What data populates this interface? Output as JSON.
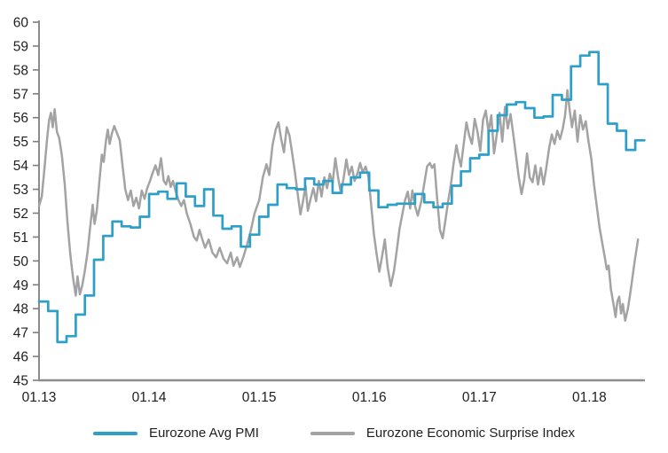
{
  "chart_data": {
    "type": "line",
    "title": "",
    "grid": "off",
    "legend_position": "bottom-center",
    "x_axis": {
      "tick_labels": [
        "01.13",
        "01.14",
        "01.15",
        "01.16",
        "01.17",
        "01.18"
      ],
      "tick_months": [
        0,
        12,
        24,
        36,
        48,
        60
      ],
      "axis_color": "#8c8c8c"
    },
    "y_axis": {
      "min": 45,
      "max": 60,
      "tick_step": 1,
      "tick_labels": [
        "45",
        "46",
        "47",
        "48",
        "49",
        "50",
        "51",
        "52",
        "53",
        "54",
        "55",
        "56",
        "57",
        "58",
        "59",
        "60"
      ],
      "axis_color": "#7f7f7f",
      "label_color": "#1f1f1f"
    },
    "series": [
      {
        "name": "Eurozone Avg PMI",
        "style": "step",
        "color": "#2D9FC9",
        "start": "01.13",
        "frequency": "monthly",
        "values": [
          48.3,
          47.9,
          46.6,
          46.85,
          47.75,
          48.55,
          50.05,
          51.05,
          51.65,
          51.45,
          51.4,
          51.85,
          52.8,
          52.9,
          52.6,
          53.25,
          52.7,
          52.3,
          53.0,
          51.9,
          51.35,
          51.45,
          50.6,
          51.1,
          51.85,
          52.35,
          53.2,
          53.05,
          53.0,
          53.45,
          53.2,
          53.35,
          52.85,
          53.2,
          53.5,
          53.7,
          52.95,
          52.25,
          52.35,
          52.4,
          52.4,
          52.8,
          52.45,
          52.25,
          52.4,
          53.15,
          53.75,
          54.3,
          54.45,
          55.45,
          56.1,
          56.55,
          56.65,
          56.4,
          56.0,
          56.05,
          56.95,
          56.75,
          58.15,
          58.6,
          58.75,
          57.4,
          55.75,
          55.45,
          54.65,
          55.05
        ]
      },
      {
        "name": "Eurozone Economic Surprise Index",
        "style": "line",
        "color": "#A3A3A3",
        "points": [
          [
            0,
            52.3
          ],
          [
            0.3,
            52.7
          ],
          [
            0.6,
            53.9
          ],
          [
            0.9,
            55.2
          ],
          [
            1.1,
            55.9
          ],
          [
            1.3,
            56.2
          ],
          [
            1.5,
            55.6
          ],
          [
            1.7,
            56.35
          ],
          [
            1.95,
            55.4
          ],
          [
            2.2,
            55.15
          ],
          [
            2.5,
            54.4
          ],
          [
            2.8,
            53.2
          ],
          [
            3.1,
            51.6
          ],
          [
            3.4,
            50.3
          ],
          [
            3.7,
            49.3
          ],
          [
            4.0,
            48.55
          ],
          [
            4.2,
            49.35
          ],
          [
            4.45,
            48.6
          ],
          [
            4.7,
            48.95
          ],
          [
            5.0,
            49.6
          ],
          [
            5.3,
            50.4
          ],
          [
            5.6,
            51.5
          ],
          [
            5.85,
            52.35
          ],
          [
            6.05,
            51.55
          ],
          [
            6.3,
            52.1
          ],
          [
            6.6,
            53.4
          ],
          [
            6.85,
            54.45
          ],
          [
            7.05,
            54.15
          ],
          [
            7.3,
            55.05
          ],
          [
            7.5,
            55.5
          ],
          [
            7.7,
            54.9
          ],
          [
            7.95,
            55.35
          ],
          [
            8.2,
            55.65
          ],
          [
            8.5,
            55.35
          ],
          [
            8.8,
            55.05
          ],
          [
            9.1,
            54.0
          ],
          [
            9.4,
            53.0
          ],
          [
            9.7,
            52.55
          ],
          [
            10.0,
            52.95
          ],
          [
            10.3,
            52.3
          ],
          [
            10.6,
            52.65
          ],
          [
            10.9,
            52.2
          ],
          [
            11.2,
            52.95
          ],
          [
            11.5,
            52.6
          ],
          [
            11.8,
            53.05
          ],
          [
            12.1,
            53.35
          ],
          [
            12.4,
            53.7
          ],
          [
            12.7,
            54.0
          ],
          [
            13.0,
            53.6
          ],
          [
            13.3,
            54.3
          ],
          [
            13.6,
            53.35
          ],
          [
            13.85,
            53.2
          ],
          [
            14.1,
            53.55
          ],
          [
            14.35,
            53.1
          ],
          [
            14.6,
            53.35
          ],
          [
            14.9,
            52.9
          ],
          [
            15.2,
            52.55
          ],
          [
            15.5,
            52.3
          ],
          [
            15.8,
            52.55
          ],
          [
            16.1,
            52.0
          ],
          [
            16.5,
            51.55
          ],
          [
            16.9,
            51.0
          ],
          [
            17.2,
            50.85
          ],
          [
            17.5,
            51.3
          ],
          [
            17.8,
            50.9
          ],
          [
            18.1,
            50.55
          ],
          [
            18.5,
            50.9
          ],
          [
            18.9,
            50.35
          ],
          [
            19.3,
            50.15
          ],
          [
            19.7,
            50.55
          ],
          [
            20.1,
            50.1
          ],
          [
            20.5,
            49.9
          ],
          [
            20.9,
            50.35
          ],
          [
            21.2,
            49.8
          ],
          [
            21.6,
            50.15
          ],
          [
            21.9,
            49.75
          ],
          [
            22.3,
            50.2
          ],
          [
            22.7,
            50.7
          ],
          [
            23.1,
            51.3
          ],
          [
            23.5,
            52.0
          ],
          [
            24.0,
            52.55
          ],
          [
            24.4,
            53.5
          ],
          [
            24.8,
            54.05
          ],
          [
            25.1,
            53.6
          ],
          [
            25.45,
            54.85
          ],
          [
            25.8,
            55.5
          ],
          [
            26.1,
            55.8
          ],
          [
            26.4,
            55.1
          ],
          [
            26.7,
            54.55
          ],
          [
            27.0,
            55.6
          ],
          [
            27.3,
            55.25
          ],
          [
            27.6,
            54.5
          ],
          [
            27.9,
            53.7
          ],
          [
            28.2,
            52.8
          ],
          [
            28.5,
            51.95
          ],
          [
            28.8,
            52.55
          ],
          [
            29.05,
            53.15
          ],
          [
            29.3,
            52.1
          ],
          [
            29.6,
            52.6
          ],
          [
            29.9,
            53.05
          ],
          [
            30.2,
            52.5
          ],
          [
            30.5,
            53.35
          ],
          [
            30.8,
            52.7
          ],
          [
            31.1,
            53.5
          ],
          [
            31.4,
            53.05
          ],
          [
            31.7,
            53.65
          ],
          [
            32.0,
            53.25
          ],
          [
            32.3,
            54.3
          ],
          [
            32.6,
            53.5
          ],
          [
            32.9,
            52.85
          ],
          [
            33.2,
            53.45
          ],
          [
            33.5,
            54.25
          ],
          [
            33.8,
            53.6
          ],
          [
            34.1,
            53.95
          ],
          [
            34.4,
            53.35
          ],
          [
            34.7,
            53.65
          ],
          [
            35.0,
            54.1
          ],
          [
            35.3,
            53.7
          ],
          [
            35.6,
            53.95
          ],
          [
            35.9,
            53.55
          ],
          [
            36.2,
            52.4
          ],
          [
            36.5,
            51.15
          ],
          [
            36.8,
            50.3
          ],
          [
            37.1,
            49.55
          ],
          [
            37.45,
            50.3
          ],
          [
            37.7,
            50.9
          ],
          [
            38.0,
            49.75
          ],
          [
            38.35,
            48.95
          ],
          [
            38.7,
            49.6
          ],
          [
            39.0,
            50.45
          ],
          [
            39.3,
            51.35
          ],
          [
            39.6,
            51.95
          ],
          [
            39.9,
            52.55
          ],
          [
            40.2,
            52.9
          ],
          [
            40.45,
            52.2
          ],
          [
            40.7,
            52.95
          ],
          [
            41.0,
            52.3
          ],
          [
            41.3,
            51.9
          ],
          [
            41.7,
            52.55
          ],
          [
            42.0,
            53.25
          ],
          [
            42.3,
            53.95
          ],
          [
            42.6,
            54.1
          ],
          [
            42.85,
            53.9
          ],
          [
            43.1,
            54.05
          ],
          [
            43.4,
            52.6
          ],
          [
            43.7,
            51.3
          ],
          [
            44.0,
            50.95
          ],
          [
            44.3,
            51.7
          ],
          [
            44.6,
            52.5
          ],
          [
            44.9,
            53.2
          ],
          [
            45.2,
            54.1
          ],
          [
            45.5,
            54.85
          ],
          [
            45.75,
            54.35
          ],
          [
            46.0,
            53.95
          ],
          [
            46.3,
            54.9
          ],
          [
            46.6,
            55.8
          ],
          [
            46.9,
            55.25
          ],
          [
            47.2,
            54.9
          ],
          [
            47.5,
            55.95
          ],
          [
            47.8,
            55.4
          ],
          [
            48.1,
            54.6
          ],
          [
            48.4,
            55.9
          ],
          [
            48.7,
            56.3
          ],
          [
            49.0,
            55.4
          ],
          [
            49.3,
            56.1
          ],
          [
            49.6,
            54.5
          ],
          [
            49.9,
            55.3
          ],
          [
            50.2,
            56.2
          ],
          [
            50.5,
            55.0
          ],
          [
            50.8,
            56.45
          ],
          [
            51.1,
            55.55
          ],
          [
            51.4,
            56.15
          ],
          [
            51.7,
            55.3
          ],
          [
            52.0,
            54.4
          ],
          [
            52.3,
            53.5
          ],
          [
            52.6,
            52.8
          ],
          [
            52.9,
            53.4
          ],
          [
            53.2,
            54.5
          ],
          [
            53.5,
            53.5
          ],
          [
            53.8,
            53.3
          ],
          [
            54.1,
            54.0
          ],
          [
            54.4,
            53.2
          ],
          [
            54.7,
            53.9
          ],
          [
            55.0,
            53.2
          ],
          [
            55.3,
            53.9
          ],
          [
            55.6,
            54.7
          ],
          [
            55.9,
            55.3
          ],
          [
            56.2,
            54.9
          ],
          [
            56.5,
            55.45
          ],
          [
            56.8,
            55.1
          ],
          [
            57.1,
            55.55
          ],
          [
            57.35,
            56.1
          ],
          [
            57.6,
            57.15
          ],
          [
            57.85,
            56.3
          ],
          [
            58.1,
            55.6
          ],
          [
            58.4,
            56.3
          ],
          [
            58.7,
            55.0
          ],
          [
            59.0,
            56.1
          ],
          [
            59.3,
            55.5
          ],
          [
            59.6,
            55.85
          ],
          [
            59.9,
            55.0
          ],
          [
            60.2,
            54.3
          ],
          [
            60.5,
            53.2
          ],
          [
            60.8,
            52.3
          ],
          [
            61.1,
            51.4
          ],
          [
            61.4,
            50.75
          ],
          [
            61.7,
            50.1
          ],
          [
            61.9,
            49.65
          ],
          [
            62.1,
            49.8
          ],
          [
            62.35,
            48.8
          ],
          [
            62.6,
            48.25
          ],
          [
            62.85,
            47.65
          ],
          [
            63.05,
            48.3
          ],
          [
            63.25,
            48.5
          ],
          [
            63.45,
            47.8
          ],
          [
            63.65,
            48.2
          ],
          [
            63.9,
            47.5
          ],
          [
            64.2,
            48.0
          ],
          [
            64.5,
            48.75
          ],
          [
            64.9,
            49.9
          ],
          [
            65.3,
            50.9
          ]
        ]
      }
    ]
  }
}
